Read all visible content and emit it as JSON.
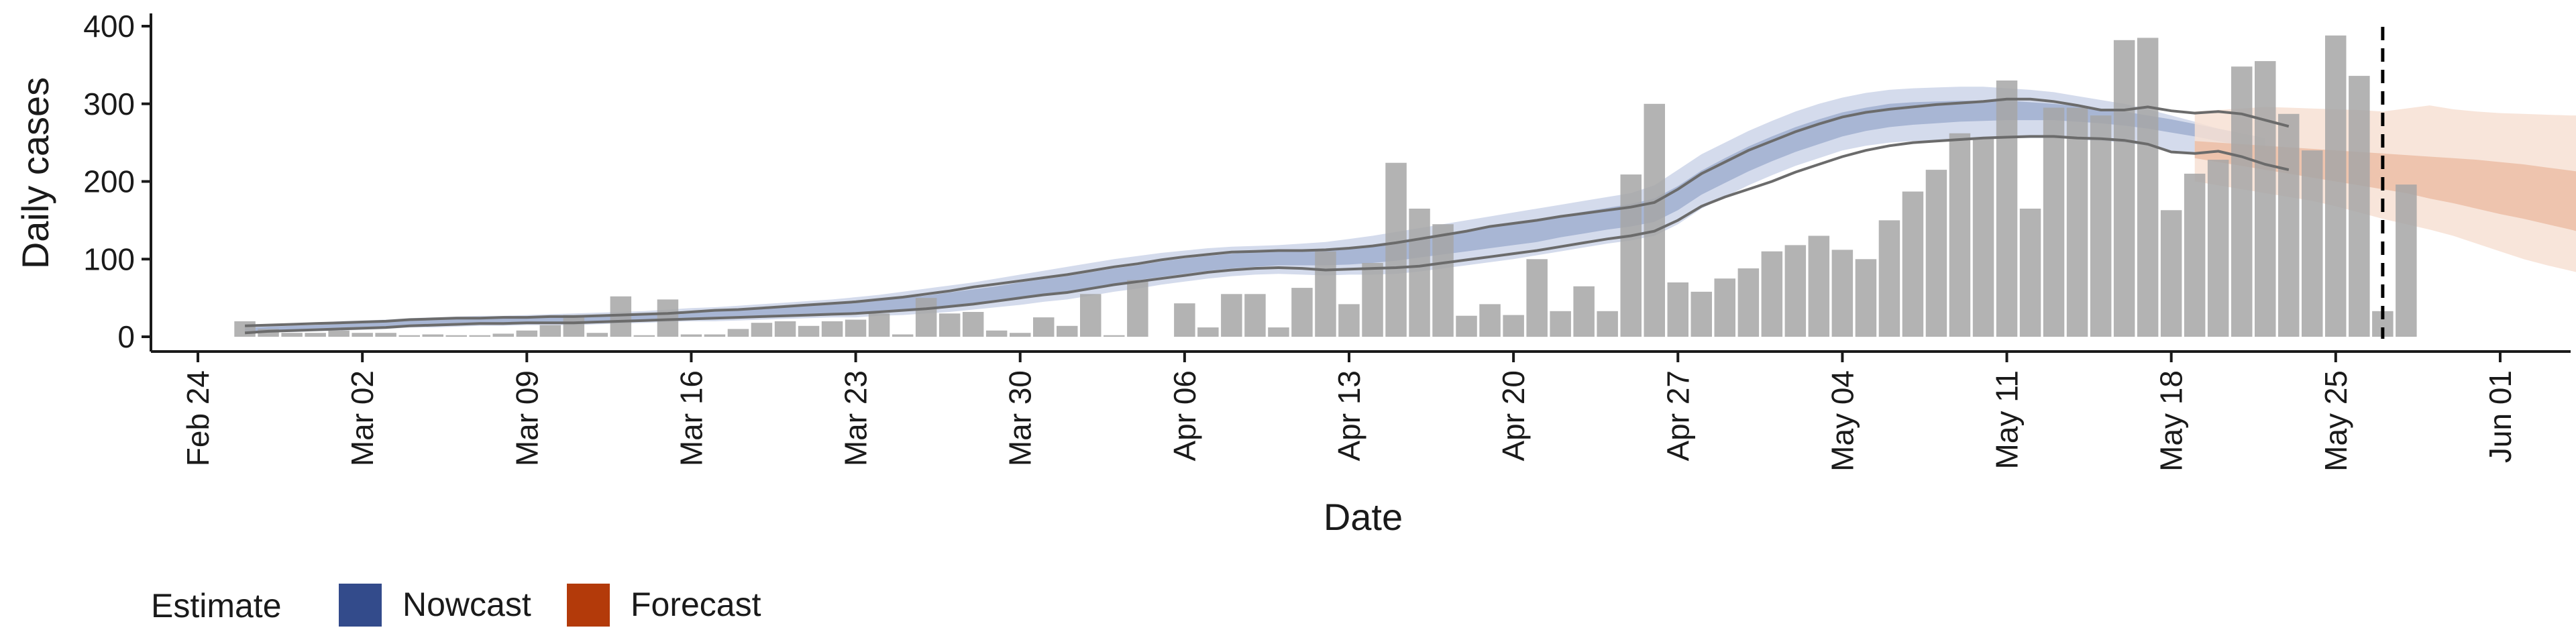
{
  "chart_data": {
    "type": "bar",
    "xlabel": "Date",
    "ylabel": "Daily cases",
    "ylim": [
      0,
      400
    ],
    "y_ticks": [
      0,
      100,
      200,
      300,
      400
    ],
    "x_range": [
      "2020-02-22",
      "2020-06-04"
    ],
    "x_ticks": [
      {
        "date": "2020-02-24",
        "label": "Feb 24"
      },
      {
        "date": "2020-03-02",
        "label": "Mar 02"
      },
      {
        "date": "2020-03-09",
        "label": "Mar 09"
      },
      {
        "date": "2020-03-16",
        "label": "Mar 16"
      },
      {
        "date": "2020-03-23",
        "label": "Mar 23"
      },
      {
        "date": "2020-03-30",
        "label": "Mar 30"
      },
      {
        "date": "2020-04-06",
        "label": "Apr 06"
      },
      {
        "date": "2020-04-13",
        "label": "Apr 13"
      },
      {
        "date": "2020-04-20",
        "label": "Apr 20"
      },
      {
        "date": "2020-04-27",
        "label": "Apr 27"
      },
      {
        "date": "2020-05-04",
        "label": "May 04"
      },
      {
        "date": "2020-05-11",
        "label": "May 11"
      },
      {
        "date": "2020-05-18",
        "label": "May 18"
      },
      {
        "date": "2020-05-25",
        "label": "May 25"
      },
      {
        "date": "2020-06-01",
        "label": "Jun 01"
      }
    ],
    "bar_start_date": "2020-02-26",
    "bar_values": [
      20,
      10,
      5,
      5,
      8,
      5,
      5,
      2,
      3,
      2,
      2,
      4,
      8,
      15,
      28,
      5,
      52,
      2,
      48,
      3,
      3,
      10,
      18,
      20,
      14,
      20,
      22,
      30,
      3,
      50,
      30,
      32,
      8,
      5,
      25,
      14,
      55,
      2,
      73,
      0,
      43,
      12,
      55,
      55,
      12,
      63,
      110,
      42,
      95,
      224,
      165,
      145,
      27,
      42,
      28,
      100,
      33,
      65,
      33,
      209,
      300,
      70,
      58,
      75,
      88,
      110,
      118,
      130,
      112,
      100,
      150,
      187,
      215,
      262,
      255,
      330,
      165,
      295,
      295,
      285,
      382,
      385,
      163,
      210,
      228,
      348,
      355,
      287,
      240,
      388,
      336,
      33,
      196
    ],
    "nowcast_start_date": "2020-02-26",
    "nowcast": {
      "lower90": [
        4,
        6,
        6,
        7,
        8,
        9,
        10,
        12,
        12,
        13,
        14,
        14,
        15,
        15,
        15,
        16,
        17,
        18,
        19,
        20,
        20,
        21,
        22,
        23,
        24,
        25,
        25,
        27,
        28,
        30,
        32,
        35,
        38,
        41,
        45,
        48,
        53,
        58,
        62,
        67,
        71,
        75,
        78,
        80,
        81,
        80,
        79,
        80,
        80,
        81,
        84,
        88,
        92,
        96,
        100,
        105,
        110,
        115,
        120,
        124,
        130,
        145,
        165,
        180,
        195,
        208,
        220,
        230,
        240,
        246,
        250,
        252,
        253,
        255,
        256,
        256,
        256,
        256,
        254,
        252,
        250,
        246,
        240,
        235,
        230,
        220,
        215
      ],
      "lower50": [
        6,
        8,
        9,
        10,
        11,
        12,
        13,
        15,
        16,
        17,
        18,
        18,
        19,
        19,
        19,
        20,
        21,
        22,
        23,
        24,
        25,
        26,
        27,
        28,
        29,
        30,
        31,
        33,
        35,
        37,
        40,
        43,
        47,
        51,
        55,
        58,
        63,
        68,
        73,
        77,
        81,
        85,
        88,
        90,
        92,
        92,
        92,
        93,
        95,
        98,
        102,
        106,
        110,
        114,
        118,
        122,
        128,
        133,
        138,
        142,
        148,
        163,
        183,
        198,
        213,
        226,
        238,
        248,
        258,
        265,
        270,
        273,
        275,
        277,
        278,
        279,
        279,
        279,
        277,
        275,
        272,
        268,
        263,
        258,
        252,
        246,
        240
      ],
      "upper50": [
        11,
        13,
        14,
        15,
        17,
        18,
        19,
        21,
        22,
        23,
        24,
        25,
        26,
        26,
        27,
        28,
        29,
        30,
        31,
        33,
        34,
        35,
        37,
        38,
        40,
        42,
        44,
        47,
        50,
        53,
        57,
        61,
        65,
        70,
        74,
        78,
        83,
        88,
        92,
        97,
        101,
        104,
        107,
        109,
        111,
        112,
        113,
        115,
        118,
        122,
        127,
        132,
        137,
        142,
        146,
        151,
        156,
        161,
        166,
        171,
        178,
        194,
        214,
        230,
        245,
        258,
        270,
        280,
        289,
        295,
        300,
        302,
        303,
        304,
        304,
        304,
        302,
        300,
        297,
        294,
        290,
        285,
        280,
        274,
        268,
        262,
        256
      ],
      "upper90": [
        14,
        16,
        17,
        18,
        20,
        21,
        22,
        24,
        25,
        26,
        27,
        27,
        28,
        29,
        30,
        31,
        32,
        33,
        35,
        37,
        38,
        40,
        42,
        44,
        46,
        48,
        51,
        54,
        58,
        62,
        66,
        70,
        75,
        80,
        85,
        90,
        95,
        100,
        104,
        108,
        111,
        114,
        116,
        117,
        118,
        120,
        122,
        126,
        130,
        135,
        140,
        145,
        150,
        155,
        160,
        165,
        170,
        175,
        180,
        185,
        195,
        215,
        235,
        250,
        265,
        278,
        290,
        300,
        308,
        314,
        318,
        320,
        321,
        322,
        322,
        320,
        318,
        315,
        310,
        305,
        300,
        293,
        285,
        277,
        268,
        260,
        250
      ],
      "line_lower": [
        5,
        7,
        8,
        9,
        10,
        11,
        12,
        14,
        15,
        16,
        17,
        17,
        18,
        18,
        18,
        19,
        20,
        21,
        22,
        23,
        24,
        25,
        26,
        27,
        28,
        29,
        30,
        32,
        34,
        36,
        39,
        42,
        46,
        50,
        54,
        57,
        62,
        67,
        71,
        75,
        79,
        83,
        86,
        88,
        89,
        88,
        86,
        87,
        88,
        89,
        91,
        95,
        99,
        103,
        107,
        111,
        116,
        121,
        126,
        130,
        136,
        150,
        168,
        180,
        190,
        200,
        212,
        222,
        232,
        240,
        246,
        250,
        252,
        254,
        256,
        257,
        258,
        258,
        256,
        255,
        253,
        248,
        238,
        236,
        239,
        232,
        222,
        215
      ],
      "line_upper": [
        14,
        15,
        16,
        17,
        18,
        19,
        20,
        22,
        23,
        24,
        24,
        25,
        25,
        26,
        26,
        27,
        28,
        29,
        30,
        32,
        34,
        35,
        37,
        39,
        41,
        43,
        45,
        48,
        51,
        55,
        59,
        64,
        68,
        72,
        76,
        80,
        85,
        90,
        94,
        99,
        103,
        106,
        109,
        110,
        111,
        111,
        112,
        114,
        117,
        121,
        126,
        131,
        136,
        142,
        146,
        150,
        155,
        159,
        163,
        167,
        173,
        190,
        210,
        225,
        240,
        252,
        264,
        274,
        283,
        289,
        293,
        296,
        299,
        301,
        303,
        306,
        306,
        303,
        298,
        292,
        292,
        296,
        291,
        288,
        290,
        287,
        279,
        271
      ]
    },
    "forecast_start_date": "2020-05-19",
    "forecast": {
      "lower90": [
        200,
        195,
        190,
        185,
        180,
        175,
        168,
        160,
        152,
        145,
        138,
        130,
        120,
        110,
        100,
        92,
        85,
        78,
        72,
        68,
        65
      ],
      "lower50": [
        230,
        225,
        220,
        215,
        210,
        205,
        200,
        195,
        190,
        185,
        178,
        172,
        165,
        158,
        152,
        145,
        138,
        130,
        125,
        120,
        118
      ],
      "upper50": [
        252,
        250,
        248,
        246,
        244,
        242,
        240,
        238,
        236,
        234,
        232,
        230,
        228,
        225,
        222,
        218,
        214,
        210,
        206,
        204,
        202
      ],
      "upper90": [
        290,
        292,
        294,
        296,
        295,
        294,
        293,
        292,
        290,
        294,
        298,
        293,
        290,
        288,
        287,
        286,
        285,
        285,
        285,
        285,
        285
      ]
    },
    "vline_date": "2020-05-27",
    "legend": {
      "title": "Estimate",
      "position": "bottom-left",
      "items": [
        {
          "label": "Nowcast",
          "color": "#334b8b"
        },
        {
          "label": "Forecast",
          "color": "#b33a0a"
        }
      ]
    },
    "colors": {
      "bar": "#a6a6a6",
      "nowcast_light": "#d4dbec",
      "nowcast_dark": "#a8b6d4",
      "forecast_light": "#f7e0d4",
      "forecast_dark": "#ebbba3",
      "bound_line": "#6b6b6b",
      "axis": "#1a1a1a"
    }
  }
}
